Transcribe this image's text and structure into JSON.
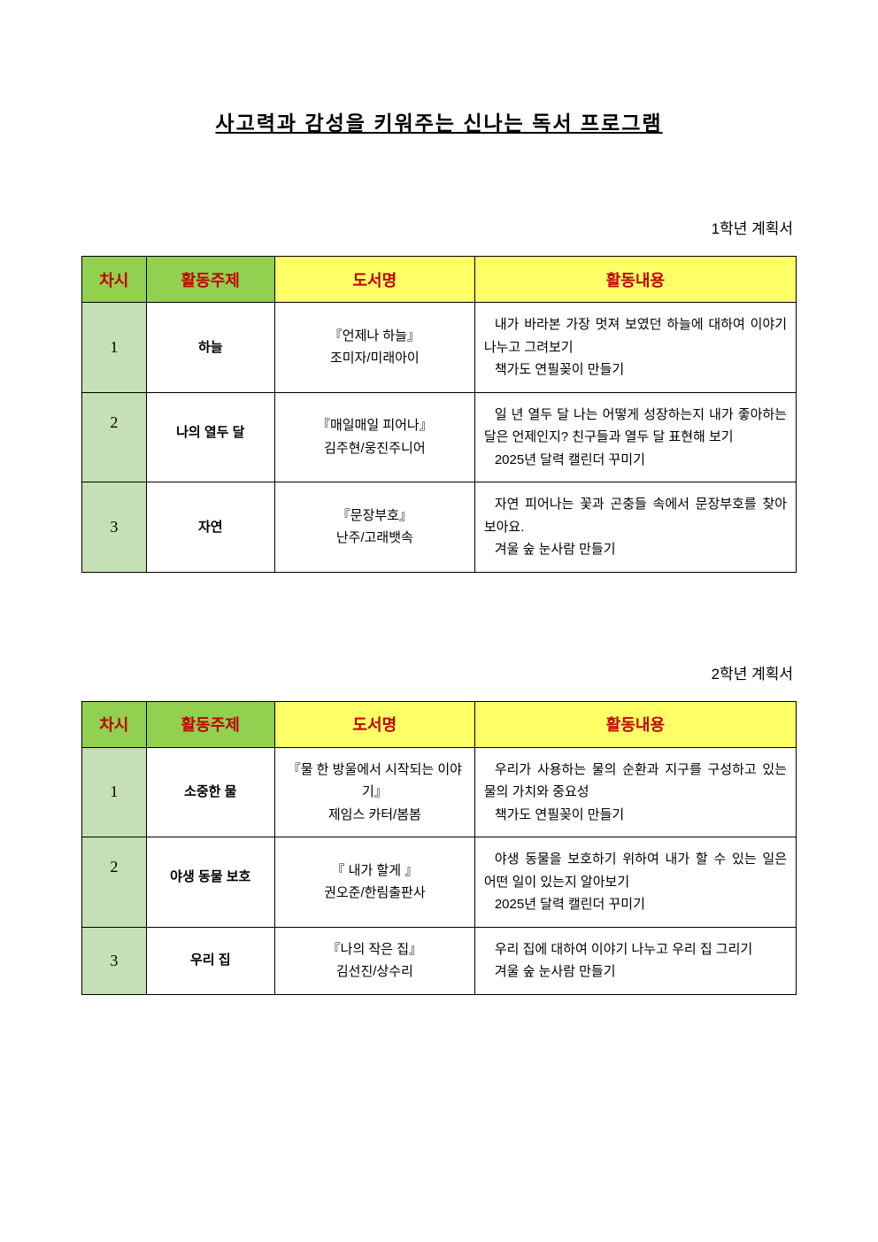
{
  "title": "사고력과 감성을 키워주는 신나는 독서 프로그램",
  "colors": {
    "header_green": "#92d050",
    "header_yellow": "#ffff66",
    "cell_green": "#c5e0b4",
    "header_text": "#c00000",
    "border": "#000000"
  },
  "columns": {
    "num": "차시",
    "topic": "활동주제",
    "book": "도서명",
    "activity": "활동내용"
  },
  "sections": [
    {
      "label": "1학년 계획서",
      "rows": [
        {
          "num": "1",
          "topic": "하늘",
          "book": "『언제나 하늘』\n조미자/미래아이",
          "activity": " 내가 바라본 가장 멋져 보였던 하늘에 대하여 이야기 나누고 그려보기\n 책가도 연필꽂이 만들기"
        },
        {
          "num": "2",
          "topic": "나의 열두 달",
          "book": "『매일매일 피어나』\n김주현/웅진주니어",
          "activity": " 일 년 열두 달 나는 어떻게 성장하는지 내가 좋아하는 달은 언제인지? 친구들과 열두 달 표현해 보기\n 2025년 달력 캘린더 꾸미기",
          "pushed": true
        },
        {
          "num": "3",
          "topic": "자연",
          "book": "『문장부호』\n난주/고래뱃속",
          "activity": " 자연 피어나는 꽃과 곤충들 속에서 문장부호를 찾아 보아요.\n 겨울 숲 눈사람 만들기"
        }
      ]
    },
    {
      "label": "2학년 계획서",
      "rows": [
        {
          "num": "1",
          "topic": "소중한 물",
          "book": "『물 한 방울에서 시작되는 이야기』\n제임스 카터/봄봄",
          "activity": " 우리가 사용하는 물의 순환과 지구를 구성하고 있는 물의 가치와 중요성\n 책가도 연필꽂이 만들기"
        },
        {
          "num": "2",
          "topic": "야생 동물 보호",
          "book": "『 내가 할게 』\n권오준/한림출판사",
          "activity": " 야생 동물을 보호하기 위하여 내가 할 수 있는 일은 어떤 일이 있는지 알아보기\n 2025년 달력 캘린더 꾸미기",
          "pushed": true
        },
        {
          "num": "3",
          "topic": "우리 집",
          "book": "『나의 작은 집』\n김선진/상수리",
          "activity": " 우리 집에 대하여 이야기 나누고 우리 집 그리기\n 겨울 숲 눈사람 만들기"
        }
      ]
    }
  ]
}
